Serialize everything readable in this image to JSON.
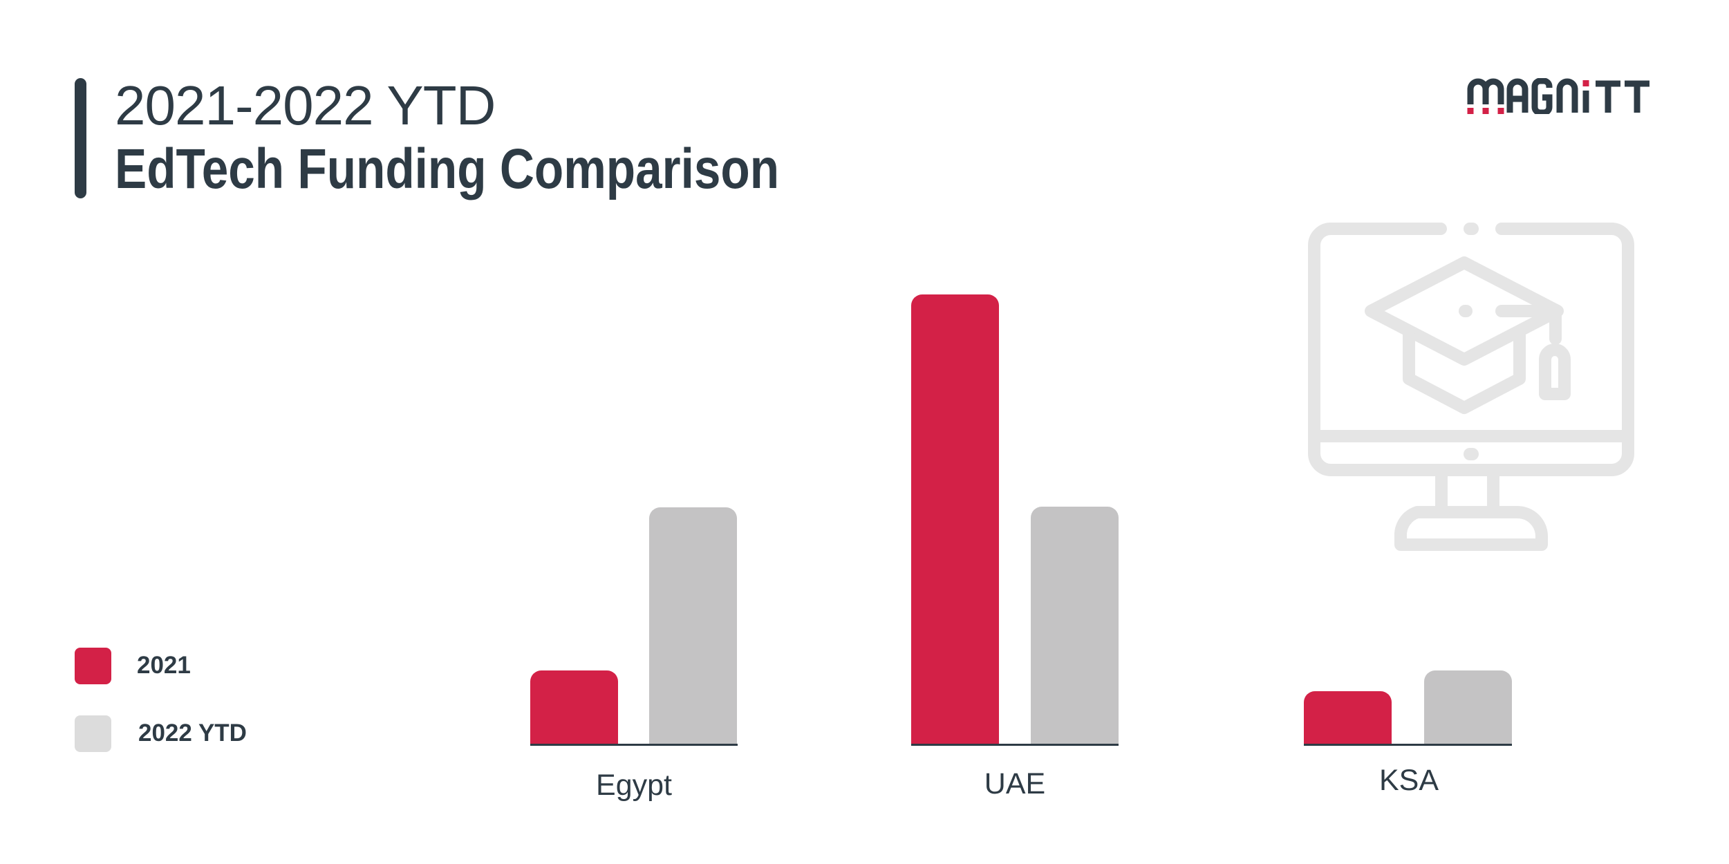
{
  "header": {
    "title_line1": "2021-2022 YTD",
    "title_line2": "EdTech Funding Comparison"
  },
  "brand": {
    "logo_text": "MAGNiTT",
    "colors": {
      "dark": "#2e3b45",
      "accent": "#d32147"
    }
  },
  "decor": {
    "icon": "monitor-graduation-cap-icon",
    "icon_color": "#e5e5e5"
  },
  "legend": {
    "items": [
      {
        "label": "2021",
        "color": "#d32147"
      },
      {
        "label": "2022 YTD",
        "color": "#dcdcdc"
      }
    ]
  },
  "chart_data": {
    "type": "bar",
    "title": "2021-2022 YTD EdTech Funding Comparison",
    "categories": [
      "Egypt",
      "UAE",
      "KSA"
    ],
    "series": [
      {
        "name": "2021",
        "color": "#d32147",
        "values": [
          108,
          652,
          78
        ]
      },
      {
        "name": "2022 YTD",
        "color": "#c4c3c4",
        "values": [
          344,
          345,
          108
        ]
      }
    ],
    "value_units": "relative bar height (no axis or data labels shown)",
    "xlabel": "",
    "ylabel": "",
    "grid": false,
    "axis_ticks_shown": false,
    "legend_position": "left-bottom"
  }
}
